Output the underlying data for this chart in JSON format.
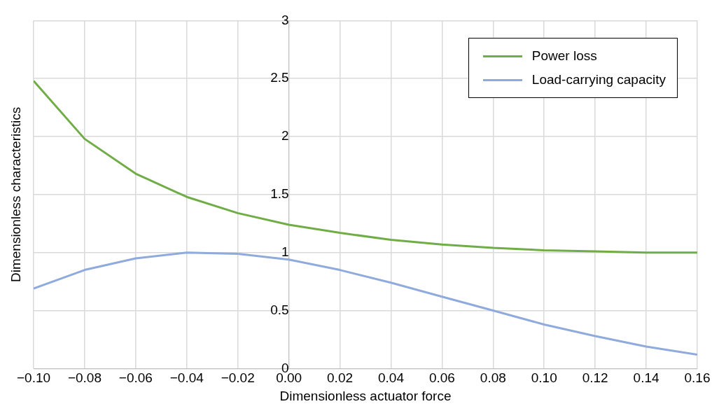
{
  "chart_data": {
    "type": "line",
    "xlabel": "Dimensionless actuator force",
    "ylabel": "Dimensionless characteristics",
    "x": [
      -0.1,
      -0.08,
      -0.06,
      -0.04,
      -0.02,
      0,
      0.02,
      0.04,
      0.06,
      0.08,
      0.1,
      0.12,
      0.14,
      0.16
    ],
    "series": [
      {
        "name": "Power loss",
        "color": "#70ad47",
        "values": [
          2.48,
          1.98,
          1.68,
          1.48,
          1.34,
          1.24,
          1.17,
          1.11,
          1.07,
          1.04,
          1.02,
          1.01,
          1.0,
          1.0
        ]
      },
      {
        "name": "Load-carrying capacity",
        "color": "#8faadc",
        "values": [
          0.69,
          0.85,
          0.95,
          1.0,
          0.99,
          0.94,
          0.85,
          0.74,
          0.62,
          0.5,
          0.38,
          0.28,
          0.19,
          0.12
        ]
      }
    ],
    "xlim": [
      -0.1,
      0.16
    ],
    "xticks": [
      {
        "value": -0.1,
        "label": "−0.10"
      },
      {
        "value": -0.08,
        "label": "−0.08"
      },
      {
        "value": -0.06,
        "label": "−0.06"
      },
      {
        "value": -0.04,
        "label": "−0.04"
      },
      {
        "value": -0.02,
        "label": "−0.02"
      },
      {
        "value": 0,
        "label": "0.00"
      },
      0.02,
      0.04,
      0.06,
      0.08,
      {
        "value": 0.1,
        "label": "0.10"
      },
      0.12,
      0.14,
      0.16
    ],
    "ylim": [
      0,
      3
    ],
    "yticks": [
      0,
      0.5,
      1,
      1.5,
      2,
      2.5,
      3
    ],
    "grid": true,
    "legend": "top right",
    "marker": "none",
    "line_style": "solid"
  }
}
